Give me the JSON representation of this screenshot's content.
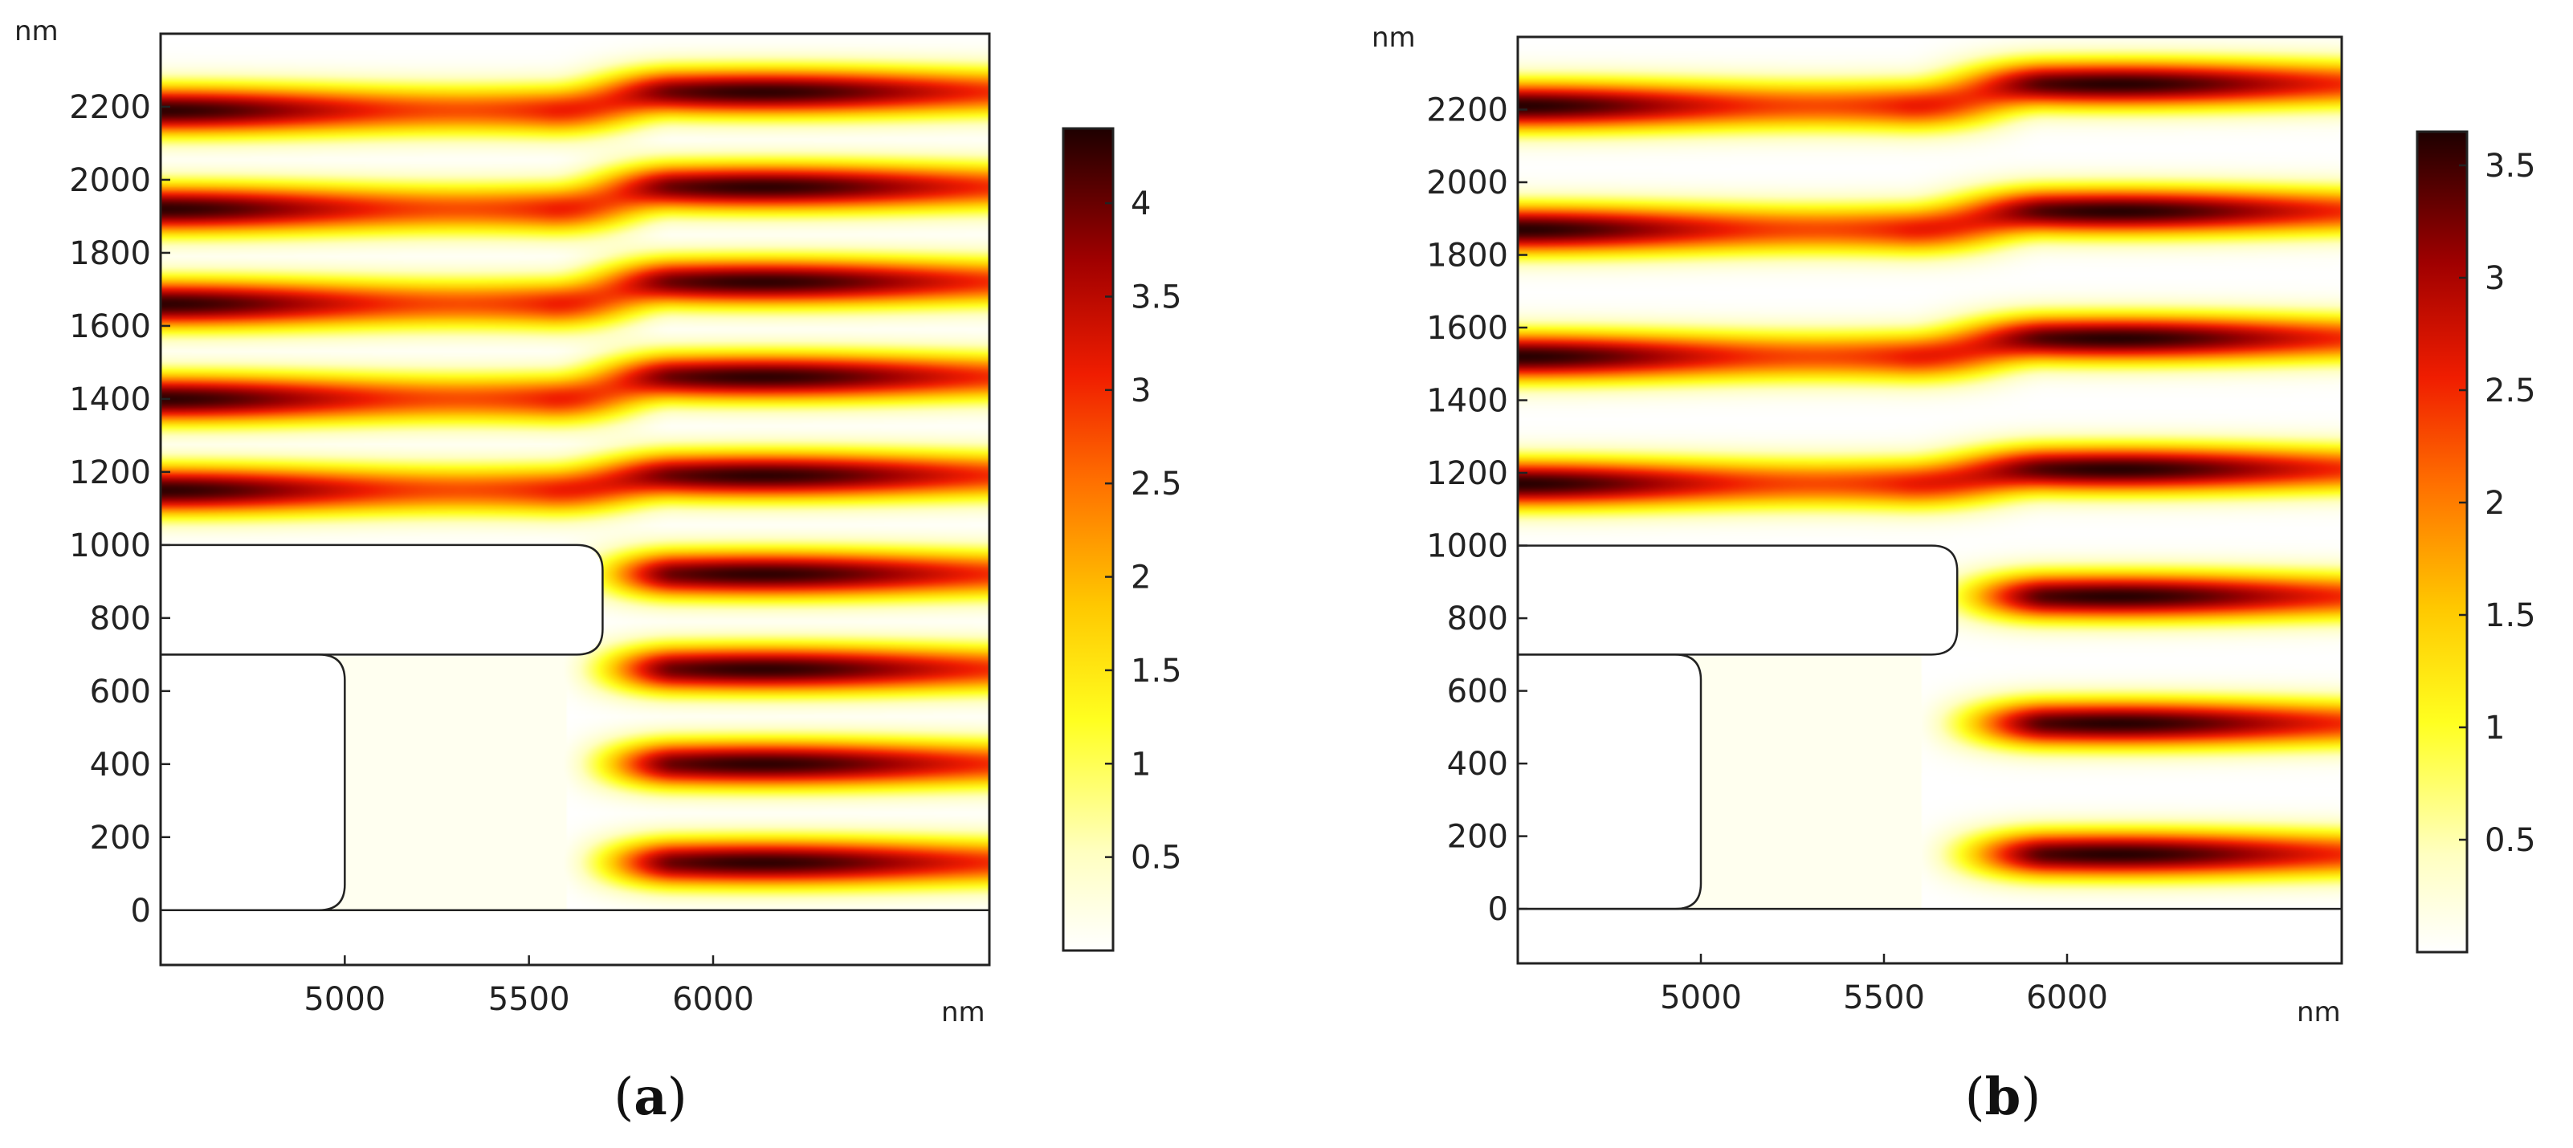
{
  "chart_data": [
    {
      "type": "heatmap",
      "panel": "a",
      "caption_letter": "a",
      "unit_x": "nm",
      "unit_y": "nm",
      "xlim": [
        4500,
        6750
      ],
      "ylim": [
        -150,
        2400
      ],
      "x_ticks": [
        5000,
        5500,
        6000
      ],
      "y_ticks": [
        0,
        200,
        400,
        600,
        800,
        1000,
        1200,
        1400,
        1600,
        1800,
        2000,
        2200
      ],
      "colorbar": {
        "range": [
          0,
          4.4
        ],
        "ticks": [
          {
            "value": 0.5,
            "label": "0.5"
          },
          {
            "value": 1.0,
            "label": "1"
          },
          {
            "value": 1.5,
            "label": "1.5"
          },
          {
            "value": 2.0,
            "label": "2"
          },
          {
            "value": 2.5,
            "label": "2.5"
          },
          {
            "value": 3.0,
            "label": "3"
          },
          {
            "value": 3.5,
            "label": "3.5"
          },
          {
            "value": 4.0,
            "label": "4"
          }
        ]
      },
      "field": {
        "left_band_centers_y": [
          1150,
          1400,
          1660,
          1920,
          2190
        ],
        "right_band_centers_y": [
          130,
          400,
          660,
          920,
          1190,
          1460,
          1720,
          1980,
          2240
        ],
        "transition_x": [
          5550,
          5900
        ],
        "peak_value": 4.3
      },
      "obstacles": {
        "waveguide_top": {
          "x": [
            4500,
            5700
          ],
          "y": [
            700,
            1000
          ],
          "corner_radius": 70
        },
        "waveguide_bottom": {
          "x": [
            4500,
            5000
          ],
          "y": [
            0,
            700
          ],
          "corner_radius": 70
        }
      }
    },
    {
      "type": "heatmap",
      "panel": "b",
      "caption_letter": "b",
      "unit_x": "nm",
      "unit_y": "nm",
      "xlim": [
        4500,
        6750
      ],
      "ylim": [
        -150,
        2400
      ],
      "x_ticks": [
        5000,
        5500,
        6000
      ],
      "y_ticks": [
        0,
        200,
        400,
        600,
        800,
        1000,
        1200,
        1400,
        1600,
        1800,
        2000,
        2200
      ],
      "colorbar": {
        "range": [
          0,
          3.65
        ],
        "ticks": [
          {
            "value": 0.5,
            "label": "0.5"
          },
          {
            "value": 1.0,
            "label": "1"
          },
          {
            "value": 1.5,
            "label": "1.5"
          },
          {
            "value": 2.0,
            "label": "2"
          },
          {
            "value": 2.5,
            "label": "2.5"
          },
          {
            "value": 3.0,
            "label": "3"
          },
          {
            "value": 3.5,
            "label": "3.5"
          }
        ]
      },
      "field": {
        "left_band_centers_y": [
          1170,
          1520,
          1870,
          2210
        ],
        "right_band_centers_y": [
          150,
          510,
          860,
          1210,
          1570,
          1920,
          2270
        ],
        "transition_x": [
          5550,
          5950
        ],
        "peak_value": 3.6
      },
      "obstacles": {
        "waveguide_top": {
          "x": [
            4500,
            5700
          ],
          "y": [
            700,
            1000
          ],
          "corner_radius": 70
        },
        "waveguide_bottom": {
          "x": [
            4500,
            5000
          ],
          "y": [
            0,
            700
          ],
          "corner_radius": 70
        }
      }
    }
  ]
}
